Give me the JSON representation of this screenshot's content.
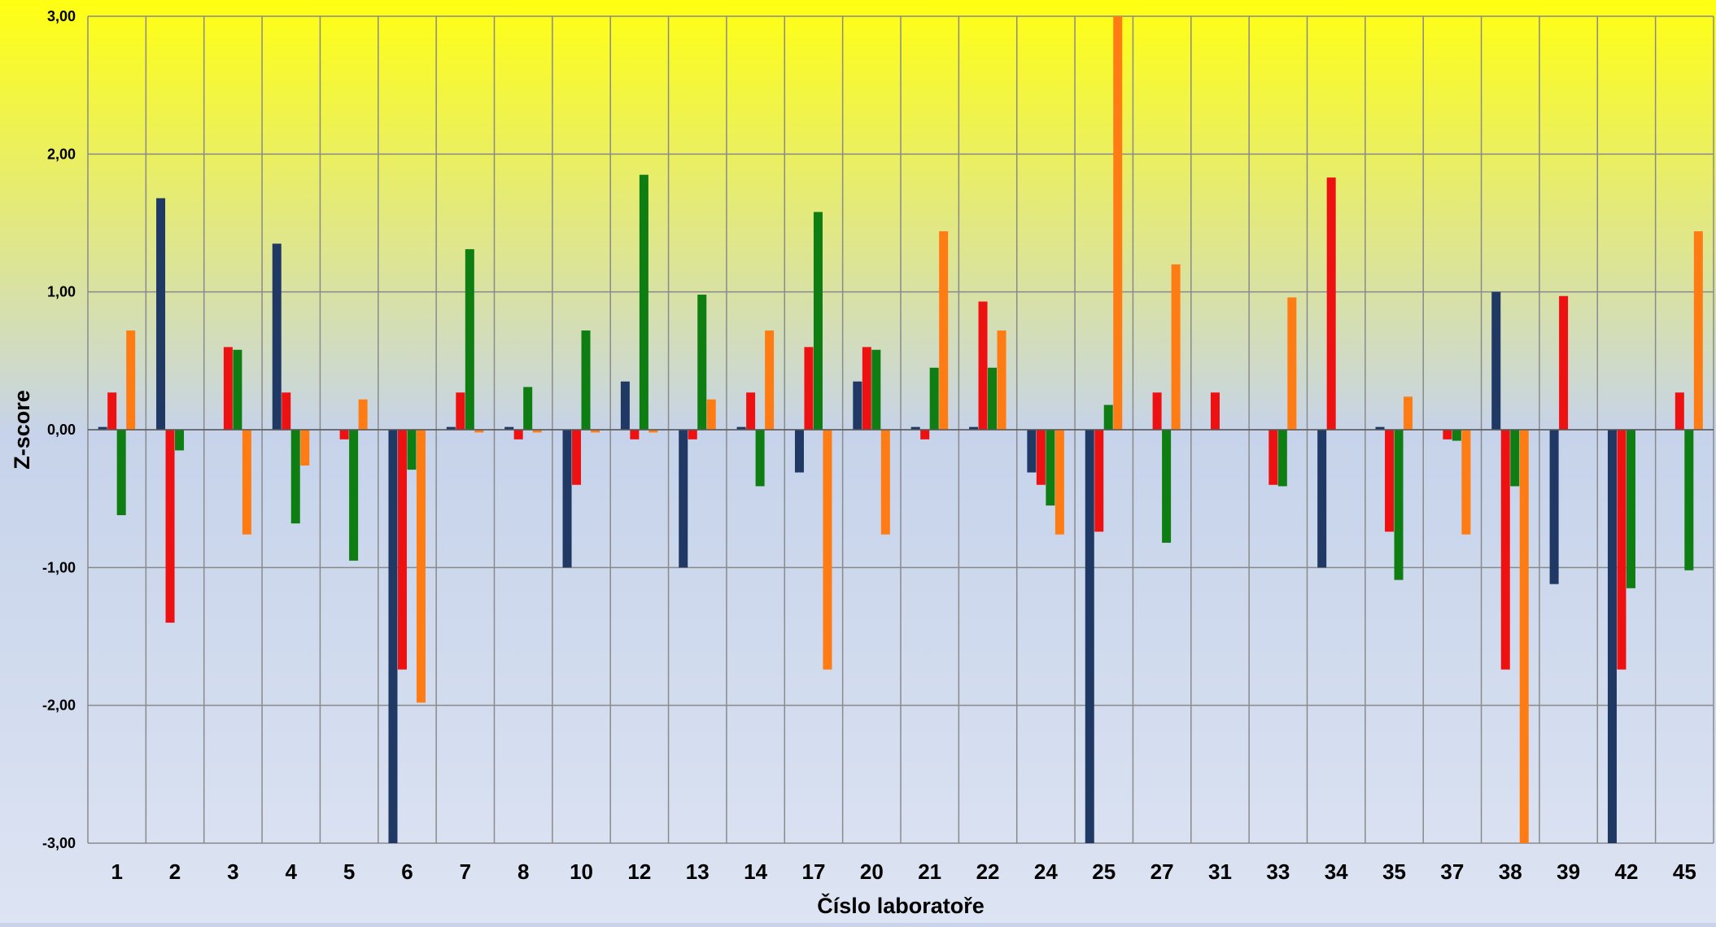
{
  "chart_data": {
    "type": "bar",
    "title": "",
    "xlabel": "Číslo laboratoře",
    "ylabel": "Z-score",
    "ylim": [
      -3,
      3
    ],
    "y_ticks": [
      3,
      2,
      1,
      0,
      -1,
      -2,
      -3
    ],
    "y_tick_labels": [
      "3,00",
      "2,00",
      "1,00",
      "0,00",
      "-1,00",
      "-2,00",
      "-3,00"
    ],
    "grid": true,
    "legend": "none",
    "background": {
      "top": "#ffff12",
      "middle": "#c6d3ea",
      "bottom": "#dde4f3"
    },
    "categories": [
      "1",
      "2",
      "3",
      "4",
      "5",
      "6",
      "7",
      "8",
      "10",
      "12",
      "13",
      "14",
      "17",
      "20",
      "21",
      "22",
      "24",
      "25",
      "27",
      "31",
      "33",
      "34",
      "35",
      "37",
      "38",
      "39",
      "42",
      "45"
    ],
    "series": [
      {
        "color": "#1f3864",
        "values": [
          0.02,
          1.68,
          0,
          1.35,
          0,
          -3.0,
          0.02,
          0.02,
          -1.0,
          0.35,
          -1.0,
          0.02,
          -0.31,
          0.35,
          0.02,
          0.02,
          -0.31,
          -3.0,
          0,
          0,
          0,
          -1.0,
          0.02,
          0,
          1.0,
          -1.12,
          -3.0,
          0
        ]
      },
      {
        "color": "#ee1111",
        "values": [
          0.27,
          -1.4,
          0.6,
          0.27,
          -0.07,
          -1.74,
          0.27,
          -0.07,
          -0.4,
          -0.07,
          -0.07,
          0.27,
          0.6,
          0.6,
          -0.07,
          0.93,
          -0.4,
          -0.74,
          0.27,
          0.27,
          -0.4,
          1.83,
          -0.74,
          -0.07,
          -1.74,
          0.97,
          -1.74,
          0.27
        ]
      },
      {
        "color": "#0e7d12",
        "values": [
          -0.62,
          -0.15,
          0.58,
          -0.68,
          -0.95,
          -0.29,
          1.31,
          0.31,
          0.72,
          1.85,
          0.98,
          -0.41,
          1.58,
          0.58,
          0.45,
          0.45,
          -0.55,
          0.18,
          -0.82,
          0,
          -0.41,
          0,
          -1.09,
          -0.08,
          -0.41,
          0,
          -1.15,
          -1.02
        ]
      },
      {
        "color": "#ff7c14",
        "values": [
          0.72,
          0,
          -0.76,
          -0.26,
          0.22,
          -1.98,
          -0.02,
          -0.02,
          -0.02,
          -0.02,
          0.22,
          0.72,
          -1.74,
          -0.76,
          1.44,
          0.72,
          -0.76,
          3.0,
          1.2,
          0,
          0.96,
          0,
          0.24,
          -0.76,
          -3.0,
          0,
          0,
          1.44
        ]
      }
    ]
  }
}
